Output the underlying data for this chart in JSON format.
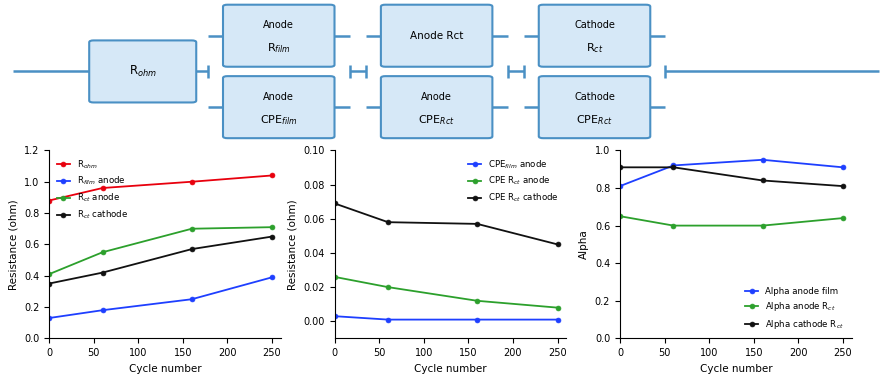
{
  "cycles": [
    0,
    60,
    160,
    250
  ],
  "plot1": {
    "Rohm": [
      0.88,
      0.96,
      1.0,
      1.04
    ],
    "Rfilm_anode": [
      0.13,
      0.18,
      0.25,
      0.39
    ],
    "Rct_anode": [
      0.41,
      0.55,
      0.7,
      0.71
    ],
    "Rct_cathode": [
      0.35,
      0.42,
      0.57,
      0.65
    ],
    "colors": [
      "#e8000d",
      "#1e3fff",
      "#2ca02c",
      "#111111"
    ],
    "ylabel": "Resistance (ohm)",
    "xlabel": "Cycle number",
    "ylim": [
      0.0,
      1.2
    ],
    "yticks": [
      0.0,
      0.2,
      0.4,
      0.6,
      0.8,
      1.0,
      1.2
    ],
    "legend": [
      "R$_{ohm}$",
      "R$_{film}$ anode",
      "R$_{ct}$ anode",
      "R$_{ct}$ cathode"
    ]
  },
  "plot2": {
    "CPEfilm_anode": [
      0.003,
      0.001,
      0.001,
      0.001
    ],
    "CPERct_anode": [
      0.026,
      0.02,
      0.012,
      0.008
    ],
    "CPERct_cathode": [
      0.069,
      0.058,
      0.057,
      0.045
    ],
    "colors": [
      "#1e3fff",
      "#2ca02c",
      "#111111"
    ],
    "ylabel": "Resistance (ohm)",
    "xlabel": "Cycle number",
    "ylim": [
      -0.01,
      0.1
    ],
    "yticks": [
      0.0,
      0.02,
      0.04,
      0.06,
      0.08,
      0.1
    ],
    "legend": [
      "CPE$_{film}$ anode",
      "CPE R$_{ct}$ anode",
      "CPE R$_{ct}$ cathode"
    ]
  },
  "plot3": {
    "Alpha_anode_film": [
      0.81,
      0.92,
      0.95,
      0.91
    ],
    "Alpha_anode_Rct": [
      0.65,
      0.6,
      0.6,
      0.64
    ],
    "Alpha_cathode_Rct": [
      0.91,
      0.91,
      0.84,
      0.81
    ],
    "colors": [
      "#1e3fff",
      "#2ca02c",
      "#111111"
    ],
    "ylabel": "Alpha",
    "xlabel": "Cycle number",
    "ylim": [
      0.0,
      1.0
    ],
    "yticks": [
      0.0,
      0.2,
      0.4,
      0.6,
      0.8,
      1.0
    ],
    "legend": [
      "Alpha anode film",
      "Alpha anode R$_{ct}$",
      "Alpha cathode R$_{ct}$"
    ]
  },
  "circuit": {
    "bg_color": "#d6e8f7",
    "box_color": "#4a90c4",
    "line_color": "#4a90c4",
    "line_lw": 1.8
  }
}
